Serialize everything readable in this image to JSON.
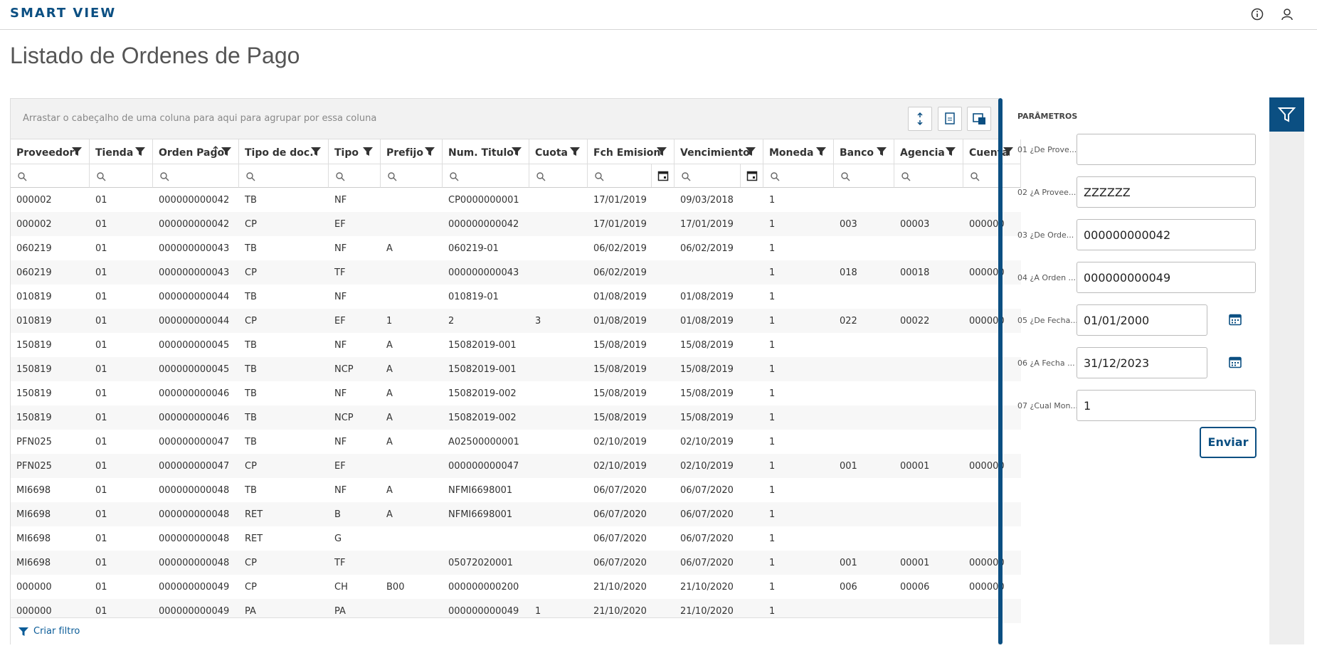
{
  "header": {
    "brand": "SMART VIEW"
  },
  "page": {
    "title": "Listado de Ordenes de Pago"
  },
  "grid": {
    "group_hint": "Arrastar o cabeçalho de uma coluna para aqui para agrupar por essa coluna",
    "columns": [
      "Proveedor",
      "Tienda",
      "Orden Pago",
      "Tipo de doc.",
      "Tipo",
      "Prefijo",
      "Num. Titulo",
      "Cuota",
      "Fch Emision",
      "Vencimiento",
      "Moneda",
      "Banco",
      "Agencia",
      "Cuenta"
    ],
    "rows": [
      [
        "000002",
        "01",
        "000000000042",
        "TB",
        "NF",
        null,
        "CP0000000001",
        null,
        "17/01/2019",
        "09/03/2018",
        "1",
        null,
        null,
        null
      ],
      [
        "000002",
        "01",
        "000000000042",
        "CP",
        "EF",
        null,
        "000000000042",
        null,
        "17/01/2019",
        "17/01/2019",
        "1",
        "003",
        "00003",
        "000000"
      ],
      [
        "060219",
        "01",
        "000000000043",
        "TB",
        "NF",
        "A",
        "060219-01",
        null,
        "06/02/2019",
        "06/02/2019",
        "1",
        null,
        null,
        null
      ],
      [
        "060219",
        "01",
        "000000000043",
        "CP",
        "TF",
        null,
        "000000000043",
        null,
        "06/02/2019",
        null,
        "1",
        "018",
        "00018",
        "000000"
      ],
      [
        "010819",
        "01",
        "000000000044",
        "TB",
        "NF",
        null,
        "010819-01",
        null,
        "01/08/2019",
        "01/08/2019",
        "1",
        null,
        null,
        null
      ],
      [
        "010819",
        "01",
        "000000000044",
        "CP",
        "EF",
        "1",
        "2",
        "3",
        "01/08/2019",
        "01/08/2019",
        "1",
        "022",
        "00022",
        "000000"
      ],
      [
        "150819",
        "01",
        "000000000045",
        "TB",
        "NF",
        "A",
        "15082019-001",
        null,
        "15/08/2019",
        "15/08/2019",
        "1",
        null,
        null,
        null
      ],
      [
        "150819",
        "01",
        "000000000045",
        "TB",
        "NCP",
        "A",
        "15082019-001",
        null,
        "15/08/2019",
        "15/08/2019",
        "1",
        null,
        null,
        null
      ],
      [
        "150819",
        "01",
        "000000000046",
        "TB",
        "NF",
        "A",
        "15082019-002",
        null,
        "15/08/2019",
        "15/08/2019",
        "1",
        null,
        null,
        null
      ],
      [
        "150819",
        "01",
        "000000000046",
        "TB",
        "NCP",
        "A",
        "15082019-002",
        null,
        "15/08/2019",
        "15/08/2019",
        "1",
        null,
        null,
        null
      ],
      [
        "PFN025",
        "01",
        "000000000047",
        "TB",
        "NF",
        "A",
        "A02500000001",
        null,
        "02/10/2019",
        "02/10/2019",
        "1",
        null,
        null,
        null
      ],
      [
        "PFN025",
        "01",
        "000000000047",
        "CP",
        "EF",
        null,
        "000000000047",
        null,
        "02/10/2019",
        "02/10/2019",
        "1",
        "001",
        "00001",
        "000000"
      ],
      [
        "MI6698",
        "01",
        "000000000048",
        "TB",
        "NF",
        "A",
        "NFMI6698001",
        null,
        "06/07/2020",
        "06/07/2020",
        "1",
        null,
        null,
        null
      ],
      [
        "MI6698",
        "01",
        "000000000048",
        "RET",
        "B",
        "A",
        "NFMI6698001",
        null,
        "06/07/2020",
        "06/07/2020",
        "1",
        null,
        null,
        null
      ],
      [
        "MI6698",
        "01",
        "000000000048",
        "RET",
        "G",
        null,
        null,
        null,
        "06/07/2020",
        "06/07/2020",
        "1",
        null,
        null,
        null
      ],
      [
        "MI6698",
        "01",
        "000000000048",
        "CP",
        "TF",
        null,
        "05072020001",
        null,
        "06/07/2020",
        "06/07/2020",
        "1",
        "001",
        "00001",
        "000000"
      ],
      [
        "000000",
        "01",
        "000000000049",
        "CP",
        "CH",
        "B00",
        "000000000200",
        null,
        "21/10/2020",
        "21/10/2020",
        "1",
        "006",
        "00006",
        "000000"
      ],
      [
        "000000",
        "01",
        "000000000049",
        "PA",
        "PA",
        null,
        "000000000049",
        "1",
        "21/10/2020",
        "21/10/2020",
        "1",
        null,
        null,
        null
      ]
    ],
    "footer": "Criar filtro"
  },
  "parameters": {
    "title": "PARÂMETROS",
    "items": [
      {
        "label": "01 ¿De Prove...",
        "value": null
      },
      {
        "label": "02 ¿A Provee...",
        "value": "ZZZZZZ"
      },
      {
        "label": "03 ¿De Orde...",
        "value": "000000000042"
      },
      {
        "label": "04 ¿A Orden ...",
        "value": "000000000049"
      },
      {
        "label": "05 ¿De Fecha...",
        "value": "01/01/2000",
        "type": "date"
      },
      {
        "label": "06 ¿A Fecha ...",
        "value": "31/12/2023",
        "type": "date"
      },
      {
        "label": "07 ¿Cual Mon...",
        "value": "1"
      }
    ],
    "button": "Enviar"
  }
}
